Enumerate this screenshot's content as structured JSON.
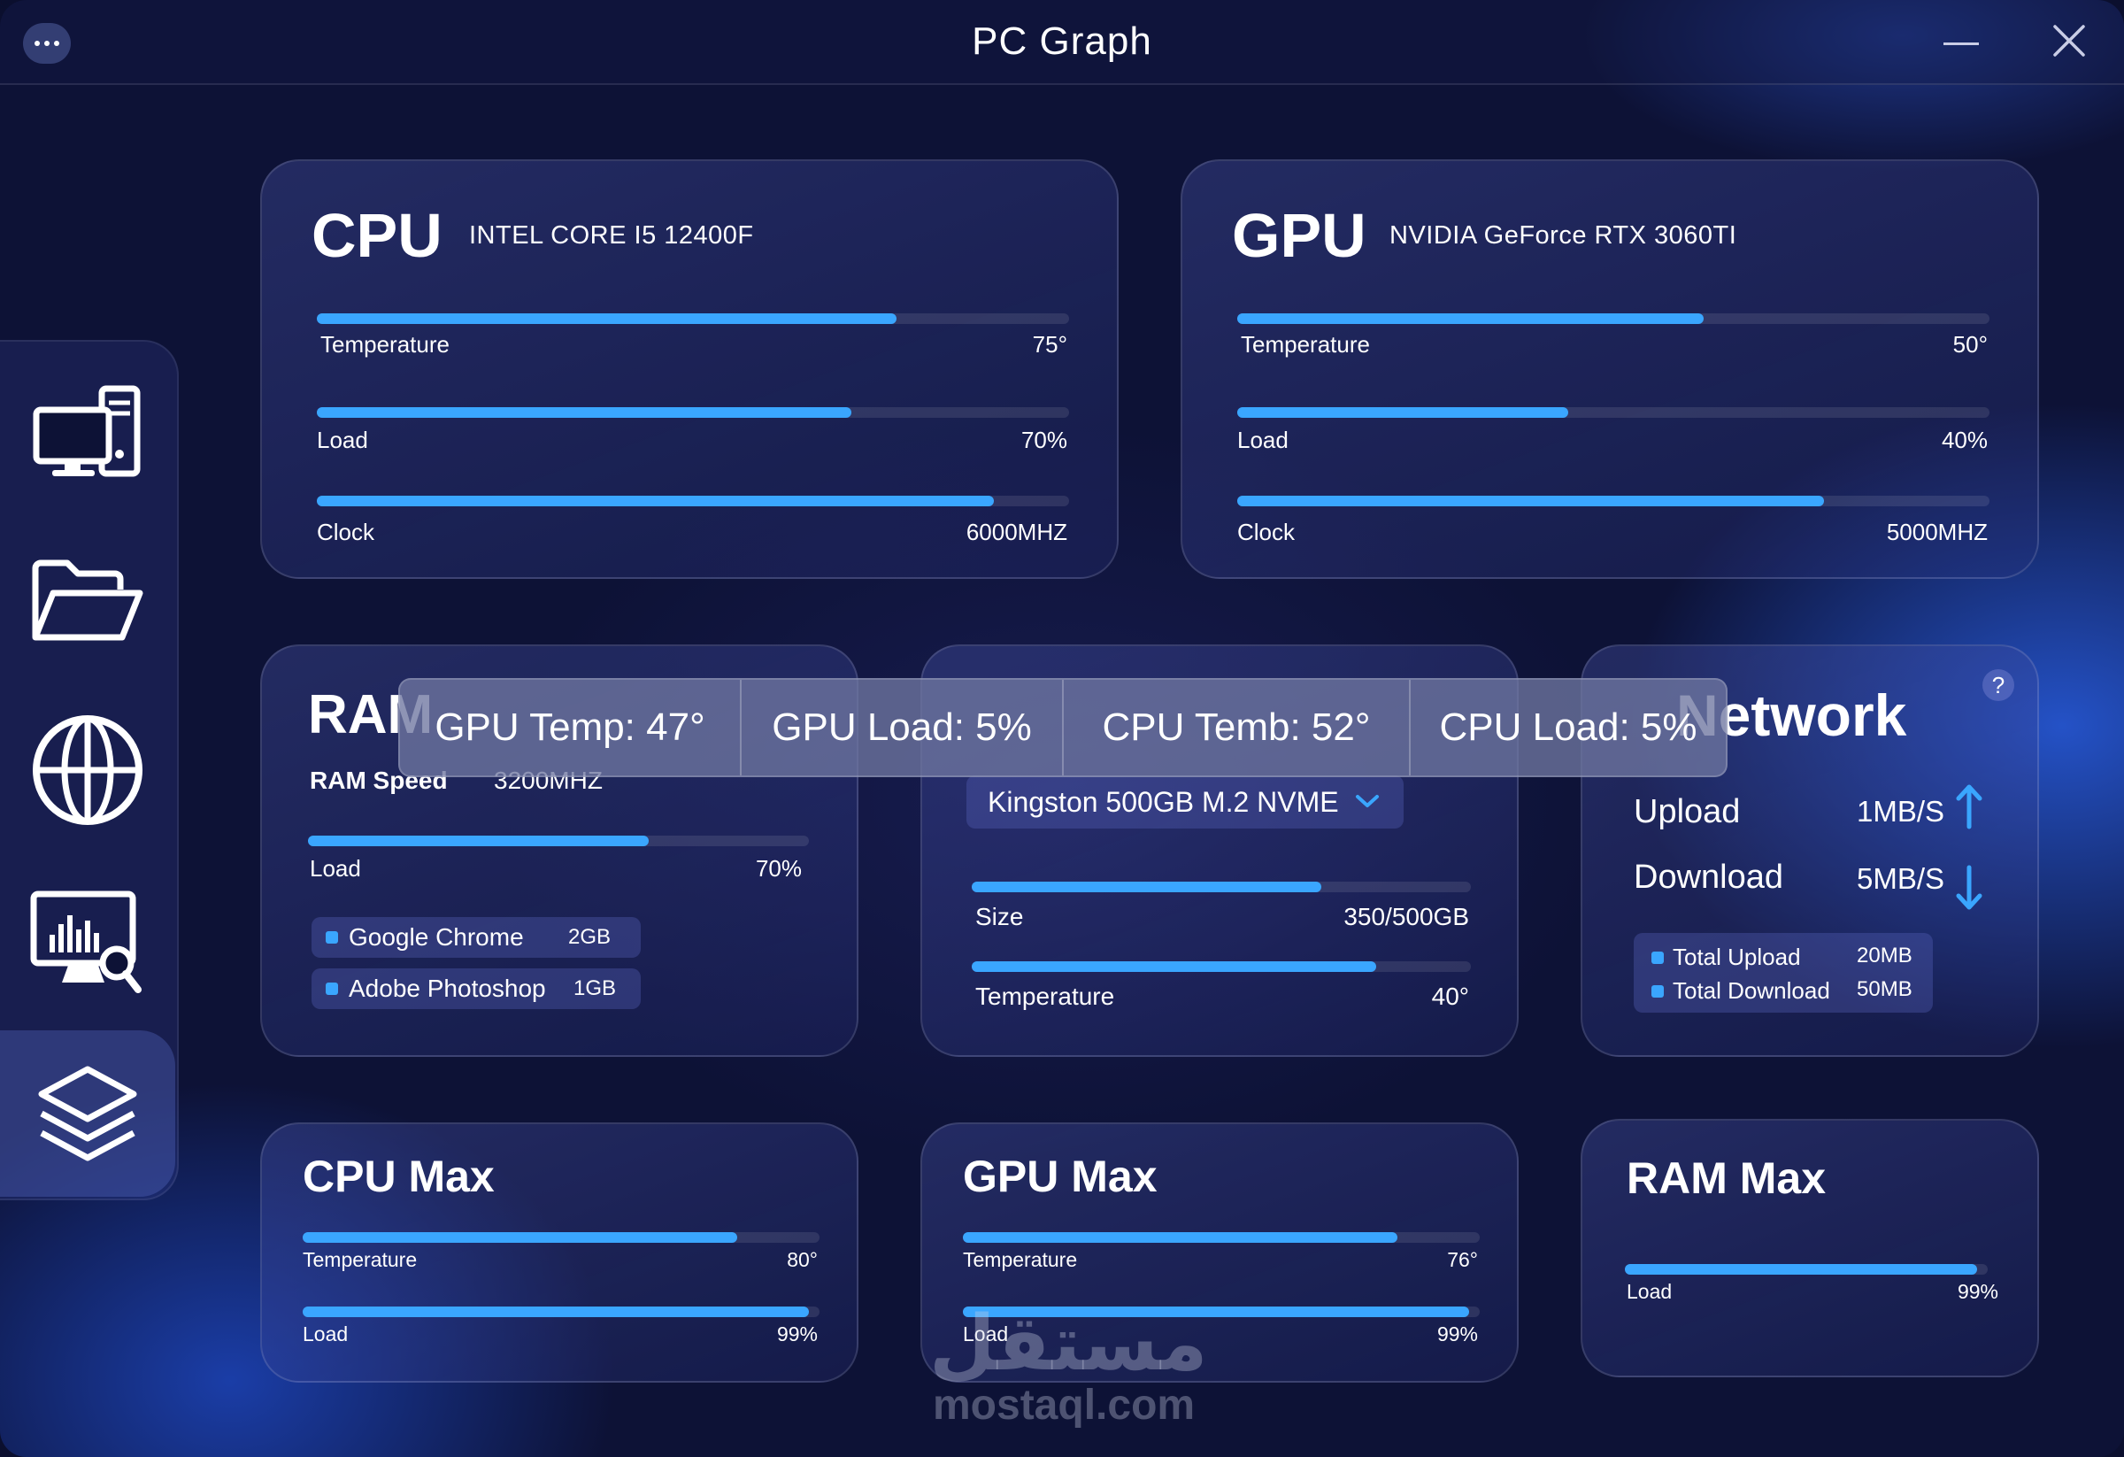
{
  "app": {
    "title": "PC Graph"
  },
  "sidebar": {
    "items": [
      {
        "icon": "computer-icon"
      },
      {
        "icon": "folder-icon"
      },
      {
        "icon": "globe-icon"
      },
      {
        "icon": "monitor-analytics-icon"
      },
      {
        "icon": "layers-icon",
        "active": true
      }
    ]
  },
  "cpu": {
    "title": "CPU",
    "model": "INTEL CORE I5 12400F",
    "metrics": [
      {
        "label": "Temperature",
        "value": "75°",
        "level": 0.77
      },
      {
        "label": "Load",
        "value": "70%",
        "level": 0.71
      },
      {
        "label": "Clock",
        "value": "6000MHZ",
        "level": 0.9
      }
    ]
  },
  "gpu": {
    "title": "GPU",
    "model": "NVIDIA GeForce RTX 3060TI",
    "metrics": [
      {
        "label": "Temperature",
        "value": "50°",
        "level": 0.62
      },
      {
        "label": "Load",
        "value": "40%",
        "level": 0.44
      },
      {
        "label": "Clock",
        "value": "5000MHZ",
        "level": 0.78
      }
    ]
  },
  "ram": {
    "title": "RAM",
    "speed_label": "RAM Speed",
    "speed_value": "3200MHZ",
    "load": {
      "label": "Load",
      "value": "70%",
      "level": 0.68
    },
    "apps": [
      {
        "name": "Google Chrome",
        "size": "2GB"
      },
      {
        "name": "Adobe Photoshop",
        "size": "1GB"
      }
    ]
  },
  "storage": {
    "drive": "Kingston 500GB M.2 NVME",
    "size": {
      "label": "Size",
      "value": "350/500GB",
      "level": 0.7
    },
    "temperature": {
      "label": "Temperature",
      "value": "40°",
      "level": 0.81
    }
  },
  "network": {
    "title": "Network",
    "help": "?",
    "upload": {
      "label": "Upload",
      "value": "1MB/S"
    },
    "download": {
      "label": "Download",
      "value": "5MB/S"
    },
    "totals": [
      {
        "label": "Total Upload",
        "value": "20MB"
      },
      {
        "label": "Total Download",
        "value": "50MB"
      }
    ]
  },
  "overlay": {
    "items": [
      "GPU Temp: 47°",
      "GPU Load: 5%",
      "CPU Temb: 52°",
      "CPU Load: 5%"
    ]
  },
  "cpu_max": {
    "title": "CPU Max",
    "temperature": {
      "label": "Temperature",
      "value": "80°",
      "level": 0.84
    },
    "load": {
      "label": "Load",
      "value": "99%",
      "level": 0.98
    }
  },
  "gpu_max": {
    "title": "GPU Max",
    "temperature": {
      "label": "Temperature",
      "value": "76°",
      "level": 0.84
    },
    "load": {
      "label": "Load",
      "value": "99%",
      "level": 0.98
    }
  },
  "ram_max": {
    "title": "RAM Max",
    "load": {
      "label": "Load",
      "value": "99%",
      "level": 0.97
    }
  },
  "watermark": {
    "arabic": "مستقل",
    "latin": "mostaql.com"
  },
  "colors": {
    "accent": "#3aa6ff",
    "background": "#0d1236"
  }
}
